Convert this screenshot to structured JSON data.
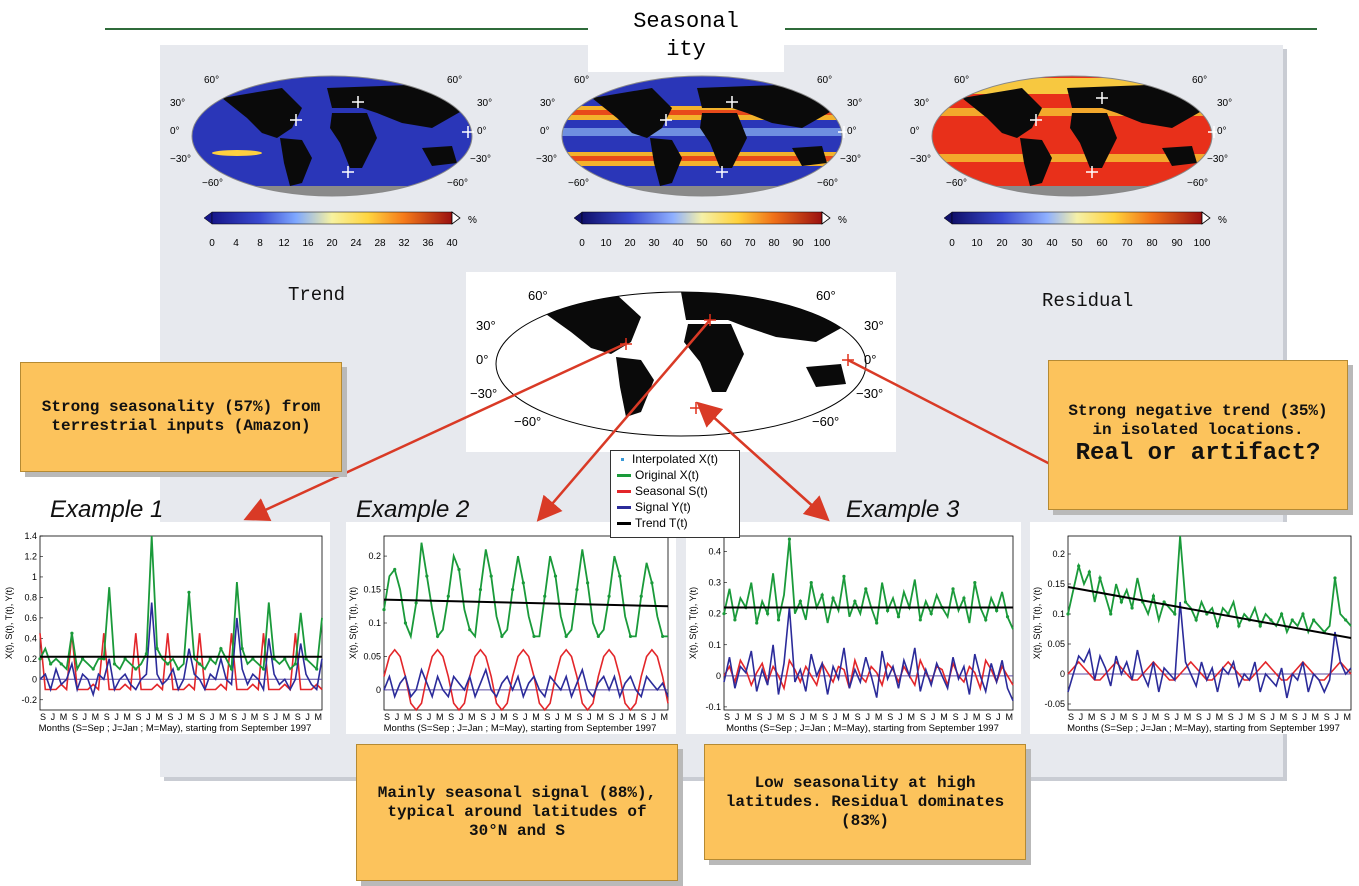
{
  "title": "Seasonality",
  "title_lines": [
    "Seasonal",
    "ity"
  ],
  "labels": {
    "trend": "Trend",
    "residual": "Residual"
  },
  "maps": [
    {
      "id": "trend",
      "colorbar_ticks": [
        "0",
        "4",
        "8",
        "12",
        "16",
        "20",
        "24",
        "28",
        "32",
        "36",
        "40"
      ],
      "unit": "%",
      "lat_labels": [
        "60°",
        "30°",
        "0°",
        "−30°",
        "−60°"
      ]
    },
    {
      "id": "seasonality",
      "colorbar_ticks": [
        "0",
        "10",
        "20",
        "30",
        "40",
        "50",
        "60",
        "70",
        "80",
        "90",
        "100"
      ],
      "unit": "%",
      "lat_labels": [
        "60°",
        "30°",
        "0°",
        "−30°",
        "−60°"
      ]
    },
    {
      "id": "residual",
      "colorbar_ticks": [
        "0",
        "10",
        "20",
        "30",
        "40",
        "50",
        "60",
        "70",
        "80",
        "90",
        "100"
      ],
      "unit": "%",
      "lat_labels": [
        "60°",
        "30°",
        "0°",
        "−30°",
        "−60°"
      ]
    }
  ],
  "locator_map": {
    "lat_labels": [
      "60°",
      "30°",
      "0°",
      "−30°",
      "−60°"
    ]
  },
  "callouts": {
    "amazon": "Strong seasonality (57%) from terrestrial inputs (Amazon)",
    "negative_trend_line1": "Strong negative trend (35%) in isolated locations.",
    "negative_trend_line2": "Real or artifact?",
    "seasonal_signal": "Mainly seasonal signal (88%), typical around latitudes of 30°N and S",
    "high_latitudes": "Low seasonality at high latitudes. Residual dominates (83%)"
  },
  "examples": [
    "Example 1",
    "Example 2",
    "Example 3"
  ],
  "legend": [
    {
      "label": "Interpolated X(t)",
      "color": "#3a9ad9"
    },
    {
      "label": "Original X(t)",
      "color": "#1a9a3a"
    },
    {
      "label": "Seasonal S(t)",
      "color": "#e3262a"
    },
    {
      "label": "Signal Y(t)",
      "color": "#2b2b9a"
    },
    {
      "label": "Trend T(t)",
      "color": "#000000"
    }
  ],
  "plot_common": {
    "ylabel": "X(t), S(t), T(t), Y(t)",
    "xlabel": "Months (S=Sep ; J=Jan ; M=May), starting from September 1997",
    "month_ticks": "S J M S J M S J M S J M S J M S J M S J M S J M S J M"
  },
  "chart_data": [
    {
      "type": "line",
      "ylim": [
        -0.3,
        1.4
      ],
      "yticks": [
        "1.4",
        "1.2",
        "1",
        "0.8",
        "0.6",
        "0.4",
        "0.2",
        "0",
        "-0.2"
      ],
      "trend": [
        0.22,
        0.22
      ],
      "series": [
        {
          "name": "Original X(t)",
          "values": [
            0.2,
            0.3,
            0.15,
            0.2,
            0.15,
            0.1,
            0.45,
            0.1,
            0.2,
            0.15,
            0.1,
            0.2,
            0.2,
            0.9,
            0.15,
            0.1,
            0.2,
            0.15,
            0.1,
            0.15,
            0.25,
            1.4,
            0.3,
            0.2,
            0.15,
            0.2,
            0.1,
            0.15,
            0.85,
            0.2,
            0.15,
            0.1,
            0.2,
            0.15,
            0.3,
            0.2,
            0.1,
            0.95,
            0.3,
            0.15,
            0.2,
            0.15,
            0.1,
            0.75,
            0.2,
            0.15,
            0.2,
            0.1,
            0.15,
            0.65,
            0.2,
            0.15,
            0.1,
            0.6
          ]
        },
        {
          "name": "Seasonal S(t)",
          "values": [
            0.45,
            -0.1,
            -0.1,
            -0.1,
            -0.05,
            -0.1,
            0.45,
            -0.1,
            -0.1,
            -0.1,
            -0.05,
            -0.1,
            0.45,
            -0.1,
            -0.1,
            -0.1,
            -0.05,
            -0.1,
            0.45,
            -0.1,
            -0.1,
            -0.1,
            -0.05,
            -0.1,
            0.45,
            -0.1,
            -0.1,
            -0.1,
            -0.05,
            -0.1,
            0.45,
            -0.1,
            -0.1,
            -0.1,
            -0.05,
            -0.1,
            0.45,
            -0.1,
            -0.1,
            -0.1,
            -0.05,
            -0.1,
            0.45,
            -0.1,
            -0.1,
            -0.1,
            -0.05,
            -0.1,
            0.45,
            -0.1,
            -0.1,
            -0.1,
            -0.05,
            -0.1
          ]
        },
        {
          "name": "Signal Y(t)",
          "values": [
            0,
            0.05,
            -0.1,
            0.1,
            -0.05,
            0,
            0.15,
            -0.1,
            0.05,
            0,
            -0.15,
            0.05,
            0,
            0.2,
            -0.1,
            0,
            0.05,
            -0.05,
            -0.1,
            0,
            0.05,
            0.75,
            0.05,
            -0.05,
            0,
            0.1,
            -0.1,
            0,
            0.3,
            0.05,
            0,
            -0.1,
            0.05,
            0,
            0.2,
            0,
            -0.05,
            0.6,
            0.1,
            -0.05,
            0.05,
            0,
            -0.1,
            0.4,
            0.05,
            -0.05,
            0,
            -0.1,
            0,
            0.35,
            0.05,
            -0.05,
            -0.1,
            0.2
          ]
        }
      ]
    },
    {
      "type": "line",
      "ylim": [
        -0.03,
        0.23
      ],
      "yticks": [
        "0.2",
        "0.15",
        "0.1",
        "0.05",
        "0"
      ],
      "trend": [
        0.135,
        0.125
      ],
      "series": [
        {
          "name": "Original X(t)",
          "values": [
            0.12,
            0.17,
            0.18,
            0.15,
            0.1,
            0.08,
            0.13,
            0.22,
            0.17,
            0.12,
            0.08,
            0.09,
            0.14,
            0.2,
            0.18,
            0.12,
            0.09,
            0.08,
            0.15,
            0.21,
            0.17,
            0.11,
            0.08,
            0.09,
            0.15,
            0.2,
            0.16,
            0.11,
            0.08,
            0.08,
            0.14,
            0.2,
            0.17,
            0.11,
            0.08,
            0.09,
            0.15,
            0.21,
            0.16,
            0.1,
            0.08,
            0.09,
            0.14,
            0.2,
            0.17,
            0.11,
            0.08,
            0.08,
            0.14,
            0.19,
            0.16,
            0.11,
            0.08,
            0.08
          ]
        },
        {
          "name": "Seasonal S(t)",
          "values": [
            0.02,
            0.05,
            0.06,
            0.05,
            0.02,
            -0.02,
            -0.03,
            -0.02,
            0.02,
            0.05,
            0.06,
            0.05,
            0.02,
            -0.02,
            -0.03,
            -0.02,
            0.02,
            0.05,
            0.06,
            0.05,
            0.02,
            -0.02,
            -0.03,
            -0.02,
            0.02,
            0.05,
            0.06,
            0.05,
            0.02,
            -0.02,
            -0.03,
            -0.02,
            0.02,
            0.05,
            0.06,
            0.05,
            0.02,
            -0.02,
            -0.03,
            -0.02,
            0.02,
            0.05,
            0.06,
            0.05,
            0.02,
            -0.02,
            -0.03,
            -0.02,
            0.02,
            0.05,
            0.06,
            0.05,
            0.02,
            -0.02
          ]
        },
        {
          "name": "Signal Y(t)",
          "values": [
            0,
            0.02,
            -0.01,
            0.01,
            0.02,
            -0.01,
            0,
            0.03,
            0.01,
            -0.01,
            0.02,
            0,
            -0.01,
            0.02,
            0.01,
            0,
            0.02,
            -0.01,
            0.01,
            0.03,
            0,
            -0.01,
            0.01,
            0.02,
            0,
            0.02,
            -0.01,
            0.01,
            0.02,
            0,
            -0.01,
            0.02,
            0.01,
            0,
            0.02,
            -0.01,
            0.01,
            0.03,
            0,
            -0.01,
            0.01,
            0.02,
            0,
            0.02,
            -0.01,
            0.01,
            0.02,
            0,
            -0.01,
            0.02,
            0.01,
            0,
            0.01,
            -0.01
          ]
        }
      ]
    },
    {
      "type": "line",
      "ylim": [
        -0.11,
        0.45
      ],
      "yticks": [
        "0.4",
        "0.3",
        "0.2",
        "0.1",
        "0",
        "-0.1"
      ],
      "trend": [
        0.22,
        0.22
      ],
      "series": [
        {
          "name": "Original X(t)",
          "values": [
            0.2,
            0.28,
            0.18,
            0.25,
            0.22,
            0.3,
            0.17,
            0.24,
            0.2,
            0.33,
            0.18,
            0.26,
            0.44,
            0.2,
            0.24,
            0.18,
            0.3,
            0.22,
            0.26,
            0.17,
            0.25,
            0.21,
            0.32,
            0.19,
            0.24,
            0.2,
            0.28,
            0.22,
            0.17,
            0.3,
            0.21,
            0.25,
            0.19,
            0.27,
            0.22,
            0.31,
            0.18,
            0.24,
            0.2,
            0.26,
            0.22,
            0.19,
            0.28,
            0.21,
            0.25,
            0.17,
            0.3,
            0.22,
            0.18,
            0.25,
            0.21,
            0.27,
            0.19,
            0.15
          ]
        },
        {
          "name": "Seasonal S(t)",
          "values": [
            0,
            0.03,
            -0.02,
            0.05,
            0.02,
            -0.03,
            0.01,
            0.04,
            -0.02,
            0.03,
            0,
            -0.04,
            0.05,
            0.02,
            -0.02,
            0.03,
            0,
            -0.03,
            0.04,
            0.01,
            -0.02,
            0.03,
            0.02,
            -0.04,
            0.05,
            0,
            -0.02,
            0.03,
            0.01,
            -0.03,
            0.04,
            0.02,
            -0.02,
            0.03,
            0,
            -0.03,
            0.05,
            0.01,
            -0.02,
            0.03,
            0.02,
            -0.03,
            0.04,
            0,
            -0.02,
            0.03,
            0.01,
            -0.04,
            0.05,
            0.02,
            -0.02,
            0.03,
            0,
            -0.03
          ]
        },
        {
          "name": "Signal Y(t)",
          "values": [
            -0.02,
            0.06,
            -0.04,
            0.03,
            0.01,
            0.08,
            -0.05,
            0.02,
            -0.03,
            0.1,
            -0.06,
            0.04,
            0.22,
            -0.02,
            0.02,
            -0.05,
            0.07,
            0,
            0.04,
            -0.06,
            0.03,
            -0.01,
            0.09,
            -0.04,
            0.02,
            -0.02,
            0.06,
            0,
            -0.07,
            0.08,
            -0.01,
            0.03,
            -0.04,
            0.05,
            0,
            0.09,
            -0.05,
            0.02,
            -0.03,
            0.04,
            0,
            -0.04,
            0.06,
            -0.01,
            0.03,
            -0.06,
            0.07,
            0,
            -0.05,
            0.04,
            -0.02,
            0.05,
            -0.04,
            -0.08
          ]
        }
      ]
    },
    {
      "type": "line",
      "ylim": [
        -0.06,
        0.23
      ],
      "yticks": [
        "0.2",
        "0.15",
        "0.1",
        "0.05",
        "0",
        "-0.05"
      ],
      "trend": [
        0.145,
        0.06
      ],
      "series": [
        {
          "name": "Original X(t)",
          "values": [
            0.1,
            0.14,
            0.18,
            0.15,
            0.17,
            0.12,
            0.16,
            0.13,
            0.1,
            0.15,
            0.12,
            0.14,
            0.11,
            0.16,
            0.12,
            0.1,
            0.13,
            0.09,
            0.12,
            0.11,
            0.1,
            0.23,
            0.12,
            0.11,
            0.09,
            0.12,
            0.1,
            0.11,
            0.08,
            0.11,
            0.1,
            0.12,
            0.08,
            0.1,
            0.09,
            0.11,
            0.08,
            0.1,
            0.09,
            0.08,
            0.1,
            0.07,
            0.09,
            0.08,
            0.1,
            0.07,
            0.09,
            0.08,
            0.07,
            0.08,
            0.16,
            0.1,
            0.09,
            0.08
          ]
        },
        {
          "name": "Seasonal S(t)",
          "values": [
            0,
            0.01,
            0.02,
            0.01,
            0,
            -0.01,
            -0.01,
            0,
            0.01,
            0.02,
            0.01,
            0,
            -0.01,
            -0.01,
            0,
            0.01,
            0.02,
            0.01,
            0,
            -0.01,
            -0.01,
            0,
            0.01,
            0.02,
            0.01,
            0,
            -0.01,
            -0.01,
            0,
            0.01,
            0.02,
            0.01,
            0,
            -0.01,
            -0.01,
            0,
            0.01,
            0.02,
            0.01,
            0,
            -0.01,
            -0.01,
            0,
            0.01,
            0.02,
            0.01,
            0,
            -0.01,
            -0.01,
            0,
            0.01,
            0.02,
            0.01,
            0
          ]
        },
        {
          "name": "Signal Y(t)",
          "values": [
            -0.03,
            0,
            0.03,
            0.02,
            0.04,
            -0.01,
            0.03,
            0.01,
            -0.02,
            0.03,
            0,
            0.02,
            -0.01,
            0.04,
            0,
            -0.02,
            0.02,
            -0.03,
            0.01,
            0,
            -0.01,
            0.12,
            0.02,
            0,
            -0.02,
            0.02,
            -0.01,
            0.01,
            -0.03,
            0.01,
            0,
            0.02,
            -0.02,
            0,
            -0.01,
            0.02,
            -0.03,
            0,
            -0.01,
            -0.02,
            0.01,
            -0.04,
            0,
            -0.01,
            0.02,
            -0.03,
            0,
            -0.01,
            -0.03,
            -0.01,
            0.07,
            0.02,
            0,
            0.01
          ]
        }
      ]
    }
  ]
}
